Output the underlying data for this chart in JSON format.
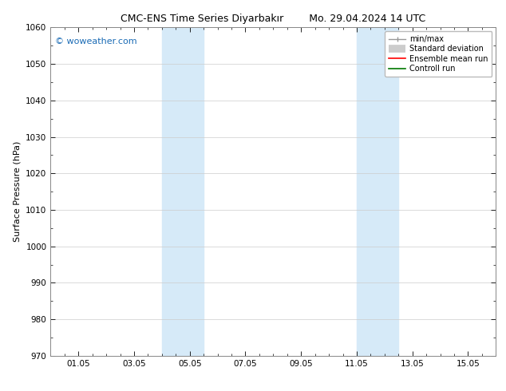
{
  "title": "CMC-ENS Time Series Diyarbakır        Mo. 29.04.2024 14 UTC",
  "ylabel": "Surface Pressure (hPa)",
  "ylim": [
    970,
    1060
  ],
  "yticks": [
    970,
    980,
    990,
    1000,
    1010,
    1020,
    1030,
    1040,
    1050,
    1060
  ],
  "xlim": [
    0.0,
    16.0
  ],
  "xtick_positions": [
    1.0,
    3.0,
    5.0,
    7.0,
    9.0,
    11.0,
    13.0,
    15.0
  ],
  "xtick_labels": [
    "01.05",
    "03.05",
    "05.05",
    "07.05",
    "09.05",
    "11.05",
    "13.05",
    "15.05"
  ],
  "shaded_bands": [
    {
      "x_start": 4.0,
      "x_end": 5.5
    },
    {
      "x_start": 11.0,
      "x_end": 12.5
    }
  ],
  "shade_color": "#d6eaf8",
  "background_color": "#ffffff",
  "watermark_text": "© woweather.com",
  "watermark_color": "#1a6bb5",
  "legend_entries": [
    {
      "label": "min/max",
      "color": "#aaaaaa",
      "lw": 1.0
    },
    {
      "label": "Standard deviation",
      "color": "#cccccc",
      "lw": 5
    },
    {
      "label": "Ensemble mean run",
      "color": "#ff0000",
      "lw": 1.2
    },
    {
      "label": "Controll run",
      "color": "#007700",
      "lw": 1.2
    }
  ],
  "title_fontsize": 9,
  "tick_fontsize": 7.5,
  "ylabel_fontsize": 8,
  "watermark_fontsize": 8,
  "legend_fontsize": 7
}
